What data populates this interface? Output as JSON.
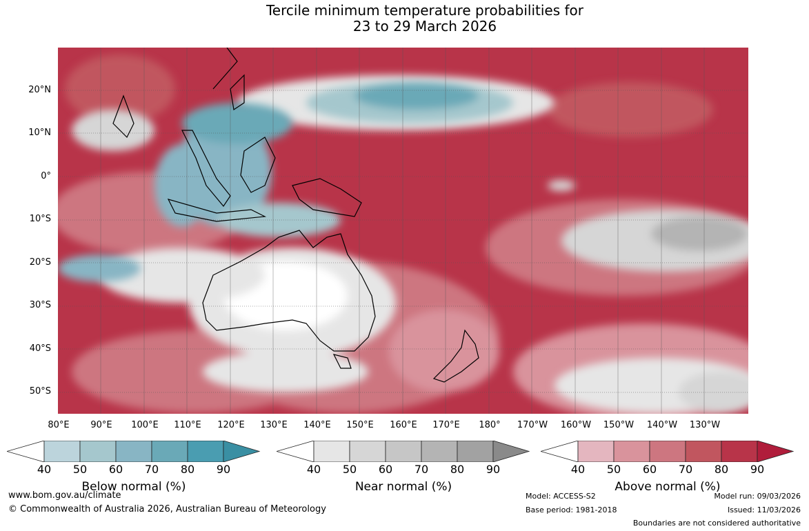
{
  "title_line1": "Tercile minimum temperature probabilities for",
  "title_line2": "23 to 29 March 2026",
  "lat_labels": [
    "20°N",
    "10°N",
    "0°",
    "10°S",
    "20°S",
    "30°S",
    "40°S",
    "50°S"
  ],
  "lon_labels": [
    "80°E",
    "90°E",
    "100°E",
    "110°E",
    "120°E",
    "130°E",
    "140°E",
    "150°E",
    "160°E",
    "170°E",
    "180°",
    "170°W",
    "160°W",
    "150°W",
    "140°W",
    "130°W"
  ],
  "colorbars": [
    {
      "label": "Below normal (%)",
      "ticks": [
        "40",
        "50",
        "60",
        "70",
        "80",
        "90"
      ],
      "colors": [
        "#ffffff",
        "#bcd4dc",
        "#a5c7cd",
        "#88b5c4",
        "#6aa9b7",
        "#4a9db1",
        "#3a8fa3"
      ]
    },
    {
      "label": "Near normal (%)",
      "ticks": [
        "40",
        "50",
        "60",
        "70",
        "80",
        "90"
      ],
      "colors": [
        "#ffffff",
        "#e6e6e6",
        "#d6d6d6",
        "#c6c6c6",
        "#b4b4b4",
        "#a2a2a2",
        "#8a8a8a"
      ]
    },
    {
      "label": "Above normal (%)",
      "ticks": [
        "40",
        "50",
        "60",
        "70",
        "80",
        "90"
      ],
      "colors": [
        "#ffffff",
        "#e4b6bf",
        "#d9939c",
        "#cd7680",
        "#c1565f",
        "#b83449",
        "#b01d3b"
      ]
    }
  ],
  "footer": {
    "url": "www.bom.gov.au/climate",
    "copyright": "© Commonwealth of Australia 2026, Australian Bureau of Meteorology",
    "model": "Model: ACCESS-S2",
    "base_period": "Base period: 1981-2018",
    "model_run": "Model run: 09/03/2026",
    "issued": "Issued: 11/03/2026",
    "disclaimer": "Boundaries are not considered authoritative"
  },
  "colors": {
    "above": "#b01d3b",
    "near": "#d6d6d6",
    "below": "#4a9db1"
  }
}
